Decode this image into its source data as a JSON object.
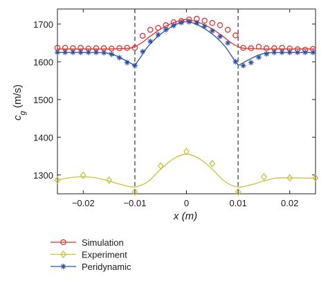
{
  "chart_data": {
    "type": "line",
    "xlabel": "x (m)",
    "ylabel": "c_g (m/s)",
    "xlim": [
      -0.025,
      0.025
    ],
    "ylim": [
      1250,
      1740
    ],
    "x_ticks": [
      -0.02,
      -0.01,
      0,
      0.01,
      0.02
    ],
    "x_tick_labels": [
      "−0.02",
      "−0.01",
      "0",
      "0.01",
      "0.02"
    ],
    "y_ticks": [
      1300,
      1400,
      1500,
      1600,
      1700
    ],
    "y_tick_labels": [
      "1300",
      "1400",
      "1500",
      "1600",
      "1700"
    ],
    "vlines": [
      -0.01,
      0.01
    ],
    "grid": false,
    "legend_position": "below-left",
    "series": [
      {
        "name": "Simulation",
        "color": "#e0312b",
        "marker": "circle",
        "points": [
          [
            -0.025,
            1637
          ],
          [
            -0.0235,
            1637
          ],
          [
            -0.022,
            1636
          ],
          [
            -0.0205,
            1637
          ],
          [
            -0.019,
            1635
          ],
          [
            -0.0175,
            1636
          ],
          [
            -0.016,
            1636
          ],
          [
            -0.0145,
            1635
          ],
          [
            -0.013,
            1636
          ],
          [
            -0.0115,
            1637
          ],
          [
            -0.01,
            1637
          ],
          [
            -0.0085,
            1669
          ],
          [
            -0.007,
            1685
          ],
          [
            -0.0055,
            1690
          ],
          [
            -0.004,
            1697
          ],
          [
            -0.0025,
            1705
          ],
          [
            -0.001,
            1708
          ],
          [
            0.0005,
            1712
          ],
          [
            0.002,
            1714
          ],
          [
            0.0035,
            1709
          ],
          [
            0.005,
            1703
          ],
          [
            0.0065,
            1697
          ],
          [
            0.008,
            1685
          ],
          [
            0.0095,
            1670
          ],
          [
            0.011,
            1637
          ],
          [
            0.0125,
            1636
          ],
          [
            0.014,
            1640
          ],
          [
            0.0155,
            1636
          ],
          [
            0.017,
            1636
          ],
          [
            0.0185,
            1637
          ],
          [
            0.02,
            1635
          ],
          [
            0.0215,
            1633
          ],
          [
            0.023,
            1632
          ],
          [
            0.0245,
            1634
          ]
        ],
        "curve": [
          [
            -0.025,
            1634
          ],
          [
            -0.02,
            1634
          ],
          [
            -0.015,
            1634
          ],
          [
            -0.0125,
            1635
          ],
          [
            -0.011,
            1636
          ],
          [
            -0.01,
            1640
          ],
          [
            -0.0085,
            1652
          ],
          [
            -0.007,
            1668
          ],
          [
            -0.005,
            1687
          ],
          [
            -0.003,
            1701
          ],
          [
            -0.0015,
            1708
          ],
          [
            0,
            1712
          ],
          [
            0.0015,
            1708
          ],
          [
            0.003,
            1701
          ],
          [
            0.005,
            1687
          ],
          [
            0.007,
            1668
          ],
          [
            0.0085,
            1652
          ],
          [
            0.01,
            1640
          ],
          [
            0.011,
            1636
          ],
          [
            0.0125,
            1635
          ],
          [
            0.015,
            1634
          ],
          [
            0.02,
            1634
          ],
          [
            0.025,
            1634
          ]
        ]
      },
      {
        "name": "Experiment",
        "color": "#c8c23a",
        "marker": "diamond",
        "points": [
          [
            -0.025,
            1286
          ],
          [
            -0.02,
            1299
          ],
          [
            -0.015,
            1286
          ],
          [
            -0.01,
            1255
          ],
          [
            -0.005,
            1324
          ],
          [
            0,
            1362
          ],
          [
            0.005,
            1330
          ],
          [
            0.01,
            1255
          ],
          [
            0.015,
            1295
          ],
          [
            0.02,
            1292
          ],
          [
            0.025,
            1292
          ]
        ],
        "curve": [
          [
            -0.025,
            1286
          ],
          [
            -0.0225,
            1293
          ],
          [
            -0.02,
            1295
          ],
          [
            -0.0175,
            1292
          ],
          [
            -0.015,
            1284
          ],
          [
            -0.0125,
            1274
          ],
          [
            -0.01,
            1268
          ],
          [
            -0.0075,
            1282
          ],
          [
            -0.005,
            1315
          ],
          [
            -0.0025,
            1343
          ],
          [
            0,
            1355
          ],
          [
            0.0025,
            1343
          ],
          [
            0.005,
            1315
          ],
          [
            0.0075,
            1282
          ],
          [
            0.01,
            1268
          ],
          [
            0.0125,
            1274
          ],
          [
            0.015,
            1284
          ],
          [
            0.0175,
            1292
          ],
          [
            0.02,
            1292
          ],
          [
            0.0225,
            1292
          ],
          [
            0.025,
            1291
          ]
        ]
      },
      {
        "name": "Peridynamic",
        "color": "#2a4fa3",
        "marker": "asterisk",
        "points": [
          [
            -0.025,
            1625
          ],
          [
            -0.0235,
            1625
          ],
          [
            -0.022,
            1625
          ],
          [
            -0.0205,
            1625
          ],
          [
            -0.019,
            1625
          ],
          [
            -0.0175,
            1625
          ],
          [
            -0.016,
            1624
          ],
          [
            -0.0145,
            1620
          ],
          [
            -0.013,
            1611
          ],
          [
            -0.0115,
            1598
          ],
          [
            -0.01,
            1590
          ],
          [
            -0.0085,
            1627
          ],
          [
            -0.007,
            1654
          ],
          [
            -0.0055,
            1672
          ],
          [
            -0.004,
            1685
          ],
          [
            -0.0025,
            1696
          ],
          [
            -0.001,
            1704
          ],
          [
            0.0005,
            1706
          ],
          [
            0.002,
            1703
          ],
          [
            0.0035,
            1694
          ],
          [
            0.005,
            1682
          ],
          [
            0.0065,
            1667
          ],
          [
            0.008,
            1650
          ],
          [
            0.0095,
            1600
          ],
          [
            0.011,
            1590
          ],
          [
            0.0125,
            1598
          ],
          [
            0.014,
            1612
          ],
          [
            0.0155,
            1621
          ],
          [
            0.017,
            1625
          ],
          [
            0.0185,
            1625
          ],
          [
            0.02,
            1625
          ],
          [
            0.0215,
            1625
          ],
          [
            0.023,
            1625
          ],
          [
            0.0245,
            1625
          ]
        ],
        "curve": [
          [
            -0.025,
            1625
          ],
          [
            -0.02,
            1625
          ],
          [
            -0.016,
            1624
          ],
          [
            -0.014,
            1618
          ],
          [
            -0.012,
            1605
          ],
          [
            -0.0105,
            1594
          ],
          [
            -0.01,
            1592
          ],
          [
            -0.009,
            1610
          ],
          [
            -0.0075,
            1640
          ],
          [
            -0.0055,
            1668
          ],
          [
            -0.003,
            1692
          ],
          [
            -0.0015,
            1702
          ],
          [
            0,
            1706
          ],
          [
            0.0015,
            1702
          ],
          [
            0.003,
            1692
          ],
          [
            0.0055,
            1668
          ],
          [
            0.0075,
            1640
          ],
          [
            0.009,
            1610
          ],
          [
            0.01,
            1592
          ],
          [
            0.0105,
            1594
          ],
          [
            0.012,
            1605
          ],
          [
            0.014,
            1618
          ],
          [
            0.016,
            1624
          ],
          [
            0.02,
            1625
          ],
          [
            0.025,
            1625
          ]
        ]
      }
    ]
  }
}
